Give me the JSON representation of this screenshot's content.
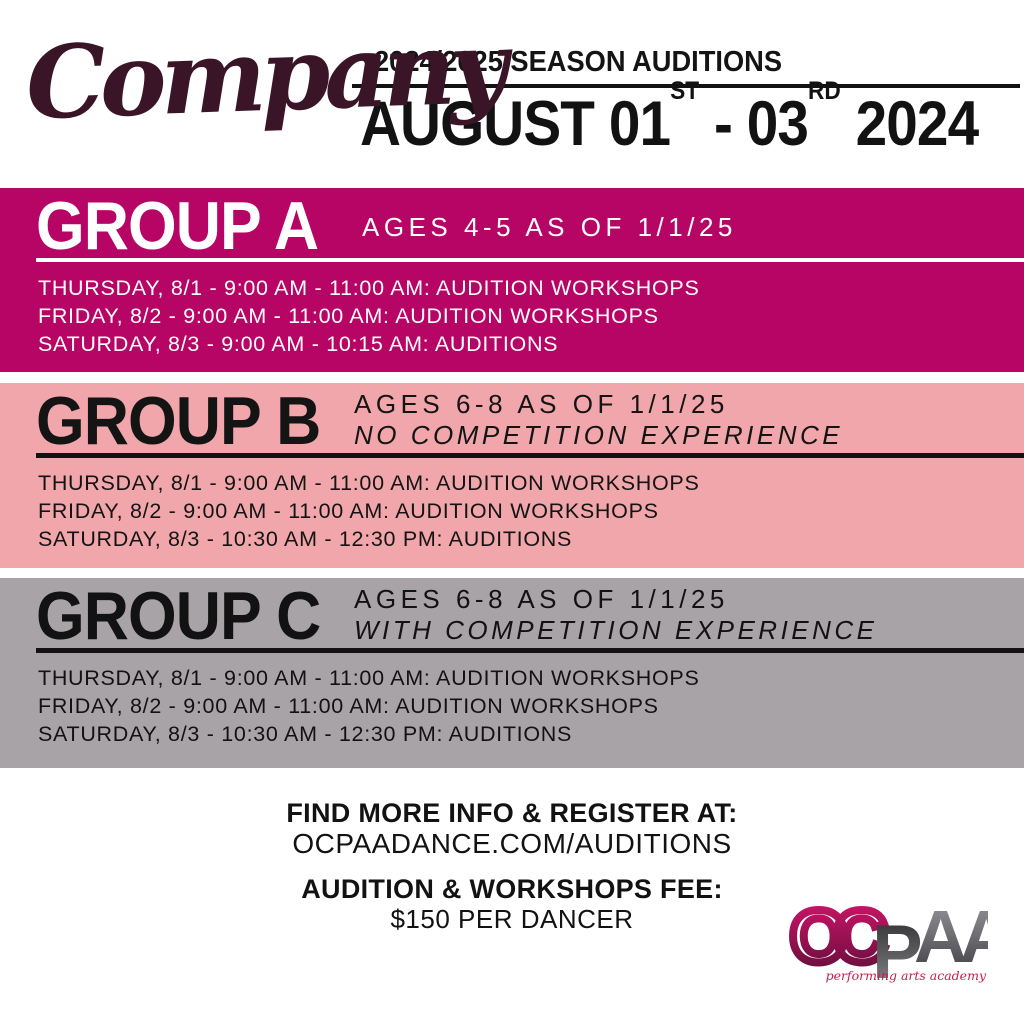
{
  "header": {
    "brand_script": "Company",
    "season_line": "2024/2025 SEASON AUDITIONS",
    "date": {
      "prefix": "AUGUST 01",
      "sup1": "ST",
      "mid": "- 03",
      "sup2": "RD",
      "suffix": " 2024"
    }
  },
  "groups": [
    {
      "name": "GROUP A",
      "subtitle_line1": "AGES 4-5 AS OF 1/1/25",
      "subtitle_line2": "",
      "schedule": [
        "THURSDAY, 8/1 - 9:00 AM - 11:00 AM: AUDITION WORKSHOPS",
        "FRIDAY, 8/2 - 9:00 AM - 11:00 AM: AUDITION WORKSHOPS",
        "SATURDAY, 8/3 - 9:00 AM - 10:15 AM: AUDITIONS"
      ]
    },
    {
      "name": "GROUP B",
      "subtitle_line1": "AGES 6-8 AS OF 1/1/25",
      "subtitle_line2": "NO COMPETITION EXPERIENCE",
      "schedule": [
        "THURSDAY, 8/1 - 9:00 AM - 11:00 AM: AUDITION WORKSHOPS",
        "FRIDAY, 8/2 - 9:00 AM - 11:00 AM: AUDITION WORKSHOPS",
        "SATURDAY, 8/3 - 10:30 AM - 12:30 PM: AUDITIONS"
      ]
    },
    {
      "name": "GROUP C",
      "subtitle_line1": "AGES 6-8 AS OF 1/1/25",
      "subtitle_line2": "WITH COMPETITION EXPERIENCE",
      "schedule": [
        "THURSDAY, 8/1 - 9:00 AM - 11:00 AM: AUDITION WORKSHOPS",
        "FRIDAY, 8/2 - 9:00 AM - 11:00 AM: AUDITION WORKSHOPS",
        "SATURDAY, 8/3 - 10:30 AM - 12:30 PM: AUDITIONS"
      ]
    }
  ],
  "footer": {
    "register_label": "FIND MORE INFO & REGISTER AT:",
    "register_url": "OCPAADANCE.COM/AUDITIONS",
    "fee_label": "AUDITION & WORKSHOPS FEE:",
    "fee_value": "$150 PER DANCER"
  },
  "logo": {
    "oc": "OC",
    "p": "P",
    "aa": "AA",
    "tagline": "performing arts academy"
  },
  "colors": {
    "band_a_bg": "#b70566",
    "band_b_bg": "#f0a6ab",
    "band_c_bg": "#a8a3a7",
    "script_maroon": "#3a1527",
    "text_black": "#121212",
    "logo_magenta": "#c21460",
    "logo_tagline": "#c41e4d"
  }
}
